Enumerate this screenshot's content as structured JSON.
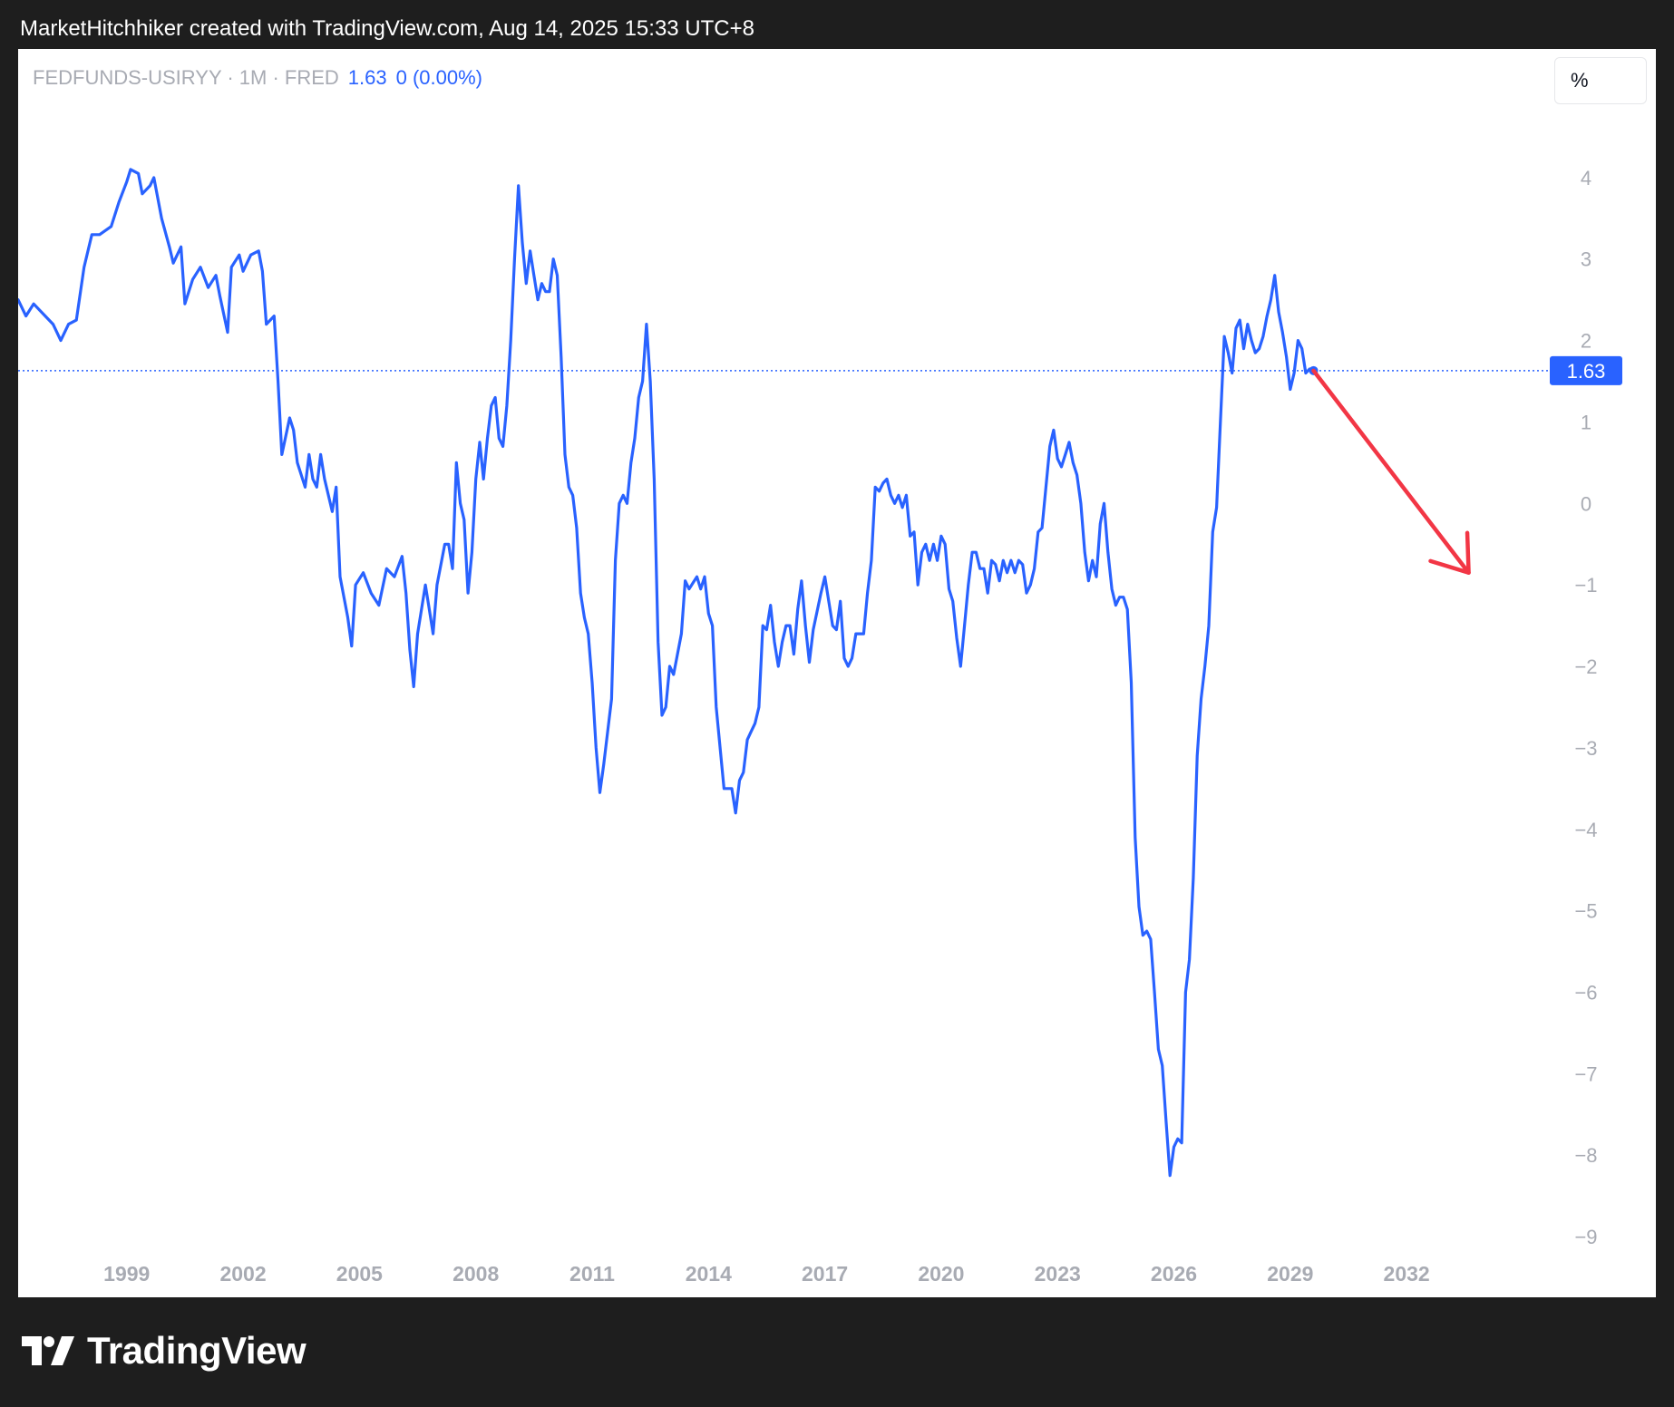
{
  "header": {
    "attribution": "MarketHitchhiker created with TradingView.com, Aug 14, 2025 15:33 UTC+8"
  },
  "legend": {
    "symbol": "FEDFUNDS-USIRYY · 1M · FRED",
    "last_value": "1.63",
    "change": "0 (0.00%)"
  },
  "scale_button": {
    "label": "%"
  },
  "brand": {
    "name": "TradingView"
  },
  "colors": {
    "series": "#2962ff",
    "arrow": "#f23645",
    "axis_text": "#a8abb3",
    "background": "#ffffff",
    "frame": "#1e1e1e"
  },
  "chart_data": {
    "type": "line",
    "title": "",
    "xlabel": "",
    "ylabel": "",
    "x_range": [
      1996.2,
      2035.2
    ],
    "ylim": [
      -9.5,
      4.9
    ],
    "y_ticks": [
      4,
      3,
      2,
      1,
      0,
      -1,
      -2,
      -3,
      -4,
      -5,
      -6,
      -7,
      -8,
      -9
    ],
    "y_tick_labels": [
      "4",
      "3",
      "2",
      "1",
      "0",
      "−1",
      "−2",
      "−3",
      "−4",
      "−5",
      "−6",
      "−7",
      "−8",
      "−9"
    ],
    "x_ticks": [
      1999,
      2002,
      2005,
      2008,
      2011,
      2014,
      2017,
      2020,
      2023,
      2026,
      2029,
      2032
    ],
    "x_tick_labels": [
      "1999",
      "2002",
      "2005",
      "2008",
      "2011",
      "2014",
      "2017",
      "2020",
      "2023",
      "2026",
      "2029",
      "2032"
    ],
    "grid": false,
    "last_value": 1.63,
    "last_value_label": "1.63",
    "series": [
      {
        "points": [
          [
            1996.2,
            2.5
          ],
          [
            1996.4,
            2.3
          ],
          [
            1996.6,
            2.45
          ],
          [
            1996.9,
            2.3
          ],
          [
            1997.1,
            2.2
          ],
          [
            1997.3,
            2.0
          ],
          [
            1997.5,
            2.2
          ],
          [
            1997.7,
            2.25
          ],
          [
            1997.9,
            2.9
          ],
          [
            1998.1,
            3.3
          ],
          [
            1998.3,
            3.3
          ],
          [
            1998.6,
            3.4
          ],
          [
            1998.8,
            3.7
          ],
          [
            1999.0,
            3.95
          ],
          [
            1999.1,
            4.1
          ],
          [
            1999.3,
            4.05
          ],
          [
            1999.4,
            3.8
          ],
          [
            1999.6,
            3.9
          ],
          [
            1999.7,
            4.0
          ],
          [
            1999.9,
            3.5
          ],
          [
            2000.1,
            3.15
          ],
          [
            2000.2,
            2.95
          ],
          [
            2000.4,
            3.15
          ],
          [
            2000.5,
            2.45
          ],
          [
            2000.7,
            2.75
          ],
          [
            2000.9,
            2.9
          ],
          [
            2001.1,
            2.65
          ],
          [
            2001.3,
            2.8
          ],
          [
            2001.4,
            2.55
          ],
          [
            2001.6,
            2.1
          ],
          [
            2001.7,
            2.9
          ],
          [
            2001.9,
            3.05
          ],
          [
            2002.0,
            2.85
          ],
          [
            2002.2,
            3.05
          ],
          [
            2002.4,
            3.1
          ],
          [
            2002.5,
            2.85
          ],
          [
            2002.6,
            2.2
          ],
          [
            2002.8,
            2.3
          ],
          [
            2002.9,
            1.5
          ],
          [
            2003.0,
            0.6
          ],
          [
            2003.2,
            1.05
          ],
          [
            2003.3,
            0.9
          ],
          [
            2003.4,
            0.5
          ],
          [
            2003.6,
            0.2
          ],
          [
            2003.7,
            0.6
          ],
          [
            2003.8,
            0.3
          ],
          [
            2003.9,
            0.2
          ],
          [
            2004.0,
            0.6
          ],
          [
            2004.1,
            0.3
          ],
          [
            2004.3,
            -0.1
          ],
          [
            2004.4,
            0.2
          ],
          [
            2004.5,
            -0.9
          ],
          [
            2004.7,
            -1.4
          ],
          [
            2004.8,
            -1.75
          ],
          [
            2004.9,
            -1.0
          ],
          [
            2005.1,
            -0.85
          ],
          [
            2005.3,
            -1.1
          ],
          [
            2005.5,
            -1.25
          ],
          [
            2005.7,
            -0.8
          ],
          [
            2005.9,
            -0.9
          ],
          [
            2006.1,
            -0.65
          ],
          [
            2006.2,
            -1.1
          ],
          [
            2006.3,
            -1.8
          ],
          [
            2006.4,
            -2.25
          ],
          [
            2006.5,
            -1.6
          ],
          [
            2006.7,
            -1.0
          ],
          [
            2006.8,
            -1.3
          ],
          [
            2006.9,
            -1.6
          ],
          [
            2007.0,
            -1.0
          ],
          [
            2007.2,
            -0.5
          ],
          [
            2007.3,
            -0.5
          ],
          [
            2007.4,
            -0.8
          ],
          [
            2007.5,
            0.5
          ],
          [
            2007.6,
            0.0
          ],
          [
            2007.7,
            -0.2
          ],
          [
            2007.8,
            -1.1
          ],
          [
            2007.9,
            -0.6
          ],
          [
            2008.0,
            0.3
          ],
          [
            2008.1,
            0.75
          ],
          [
            2008.2,
            0.3
          ],
          [
            2008.3,
            0.8
          ],
          [
            2008.4,
            1.2
          ],
          [
            2008.5,
            1.3
          ],
          [
            2008.6,
            0.8
          ],
          [
            2008.7,
            0.7
          ],
          [
            2008.8,
            1.2
          ],
          [
            2008.9,
            2.0
          ],
          [
            2009.0,
            3.0
          ],
          [
            2009.1,
            3.9
          ],
          [
            2009.2,
            3.2
          ],
          [
            2009.3,
            2.7
          ],
          [
            2009.4,
            3.1
          ],
          [
            2009.5,
            2.8
          ],
          [
            2009.6,
            2.5
          ],
          [
            2009.7,
            2.7
          ],
          [
            2009.8,
            2.6
          ],
          [
            2009.9,
            2.6
          ],
          [
            2010.0,
            3.0
          ],
          [
            2010.1,
            2.8
          ],
          [
            2010.2,
            1.8
          ],
          [
            2010.3,
            0.6
          ],
          [
            2010.4,
            0.2
          ],
          [
            2010.5,
            0.1
          ],
          [
            2010.6,
            -0.3
          ],
          [
            2010.7,
            -1.1
          ],
          [
            2010.8,
            -1.4
          ],
          [
            2010.9,
            -1.6
          ],
          [
            2011.0,
            -2.2
          ],
          [
            2011.1,
            -3.0
          ],
          [
            2011.2,
            -3.55
          ],
          [
            2011.3,
            -3.2
          ],
          [
            2011.4,
            -2.8
          ],
          [
            2011.5,
            -2.4
          ],
          [
            2011.6,
            -0.7
          ],
          [
            2011.7,
            0.0
          ],
          [
            2011.8,
            0.1
          ],
          [
            2011.9,
            0.0
          ],
          [
            2012.0,
            0.5
          ],
          [
            2012.1,
            0.8
          ],
          [
            2012.2,
            1.3
          ],
          [
            2012.3,
            1.5
          ],
          [
            2012.4,
            2.2
          ],
          [
            2012.5,
            1.5
          ],
          [
            2012.6,
            0.3
          ],
          [
            2012.7,
            -1.7
          ],
          [
            2012.8,
            -2.6
          ],
          [
            2012.9,
            -2.5
          ],
          [
            2013.0,
            -2.0
          ],
          [
            2013.1,
            -2.1
          ],
          [
            2013.3,
            -1.6
          ],
          [
            2013.4,
            -0.95
          ],
          [
            2013.5,
            -1.05
          ],
          [
            2013.7,
            -0.9
          ],
          [
            2013.8,
            -1.05
          ],
          [
            2013.9,
            -0.9
          ],
          [
            2014.0,
            -1.35
          ],
          [
            2014.1,
            -1.5
          ],
          [
            2014.2,
            -2.5
          ],
          [
            2014.4,
            -3.5
          ],
          [
            2014.6,
            -3.5
          ],
          [
            2014.7,
            -3.8
          ],
          [
            2014.8,
            -3.4
          ],
          [
            2014.9,
            -3.3
          ],
          [
            2015.0,
            -2.9
          ],
          [
            2015.1,
            -2.8
          ],
          [
            2015.2,
            -2.7
          ],
          [
            2015.3,
            -2.5
          ],
          [
            2015.4,
            -1.5
          ],
          [
            2015.5,
            -1.55
          ],
          [
            2015.6,
            -1.25
          ],
          [
            2015.7,
            -1.7
          ],
          [
            2015.8,
            -2.0
          ],
          [
            2015.9,
            -1.7
          ],
          [
            2016.0,
            -1.5
          ],
          [
            2016.1,
            -1.5
          ],
          [
            2016.2,
            -1.85
          ],
          [
            2016.3,
            -1.3
          ],
          [
            2016.4,
            -0.95
          ],
          [
            2016.5,
            -1.5
          ],
          [
            2016.6,
            -1.95
          ],
          [
            2016.7,
            -1.55
          ],
          [
            2016.9,
            -1.1
          ],
          [
            2017.0,
            -0.9
          ],
          [
            2017.1,
            -1.2
          ],
          [
            2017.2,
            -1.5
          ],
          [
            2017.3,
            -1.55
          ],
          [
            2017.4,
            -1.2
          ],
          [
            2017.5,
            -1.9
          ],
          [
            2017.6,
            -2.0
          ],
          [
            2017.7,
            -1.9
          ],
          [
            2017.8,
            -1.6
          ],
          [
            2017.9,
            -1.6
          ],
          [
            2018.0,
            -1.6
          ],
          [
            2018.1,
            -1.1
          ],
          [
            2018.2,
            -0.7
          ],
          [
            2018.3,
            0.2
          ],
          [
            2018.4,
            0.15
          ],
          [
            2018.5,
            0.25
          ],
          [
            2018.6,
            0.3
          ],
          [
            2018.7,
            0.1
          ],
          [
            2018.8,
            0.0
          ],
          [
            2018.9,
            0.1
          ],
          [
            2019.0,
            -0.05
          ],
          [
            2019.1,
            0.1
          ],
          [
            2019.2,
            -0.4
          ],
          [
            2019.3,
            -0.35
          ],
          [
            2019.4,
            -1.0
          ],
          [
            2019.5,
            -0.6
          ],
          [
            2019.6,
            -0.5
          ],
          [
            2019.7,
            -0.7
          ],
          [
            2019.8,
            -0.5
          ],
          [
            2019.9,
            -0.7
          ],
          [
            2020.0,
            -0.4
          ],
          [
            2020.1,
            -0.5
          ],
          [
            2020.2,
            -1.05
          ],
          [
            2020.3,
            -1.2
          ],
          [
            2020.4,
            -1.65
          ],
          [
            2020.5,
            -2.0
          ],
          [
            2020.6,
            -1.5
          ],
          [
            2020.7,
            -1.0
          ],
          [
            2020.8,
            -0.6
          ],
          [
            2020.9,
            -0.6
          ],
          [
            2021.0,
            -0.8
          ],
          [
            2021.1,
            -0.8
          ],
          [
            2021.2,
            -1.1
          ],
          [
            2021.3,
            -0.7
          ],
          [
            2021.4,
            -0.75
          ],
          [
            2021.5,
            -0.95
          ],
          [
            2021.6,
            -0.7
          ],
          [
            2021.7,
            -0.85
          ],
          [
            2021.8,
            -0.7
          ],
          [
            2021.9,
            -0.85
          ],
          [
            2022.0,
            -0.7
          ],
          [
            2022.1,
            -0.75
          ],
          [
            2022.2,
            -1.1
          ],
          [
            2022.3,
            -1.0
          ],
          [
            2022.4,
            -0.8
          ],
          [
            2022.5,
            -0.35
          ],
          [
            2022.6,
            -0.3
          ],
          [
            2022.7,
            0.2
          ],
          [
            2022.8,
            0.7
          ],
          [
            2022.9,
            0.9
          ],
          [
            2023.0,
            0.55
          ],
          [
            2023.1,
            0.45
          ],
          [
            2023.2,
            0.6
          ],
          [
            2023.3,
            0.75
          ],
          [
            2023.4,
            0.5
          ],
          [
            2023.5,
            0.35
          ],
          [
            2023.6,
            0.0
          ],
          [
            2023.7,
            -0.6
          ],
          [
            2023.8,
            -0.95
          ],
          [
            2023.9,
            -0.7
          ],
          [
            2024.0,
            -0.9
          ],
          [
            2024.1,
            -0.25
          ],
          [
            2024.2,
            0.0
          ],
          [
            2024.3,
            -0.6
          ],
          [
            2024.4,
            -1.05
          ],
          [
            2024.5,
            -1.25
          ],
          [
            2024.6,
            -1.15
          ],
          [
            2024.7,
            -1.15
          ],
          [
            2024.8,
            -1.3
          ],
          [
            2024.9,
            -2.2
          ],
          [
            2025.0,
            -4.1
          ],
          [
            2025.1,
            -4.95
          ],
          [
            2025.2,
            -5.3
          ],
          [
            2025.3,
            -5.25
          ],
          [
            2025.4,
            -5.35
          ],
          [
            2025.5,
            -6.0
          ],
          [
            2025.6,
            -6.7
          ],
          [
            2025.7,
            -6.9
          ],
          [
            2025.8,
            -7.6
          ],
          [
            2025.9,
            -8.25
          ],
          [
            2026.0,
            -7.9
          ],
          [
            2026.1,
            -7.8
          ],
          [
            2026.2,
            -7.85
          ],
          [
            2026.3,
            -6.0
          ],
          [
            2026.4,
            -5.6
          ],
          [
            2026.5,
            -4.6
          ],
          [
            2026.6,
            -3.1
          ],
          [
            2026.7,
            -2.4
          ],
          [
            2026.8,
            -2.0
          ],
          [
            2026.9,
            -1.5
          ],
          [
            2027.0,
            -0.35
          ],
          [
            2027.1,
            -0.05
          ],
          [
            2027.2,
            1.0
          ],
          [
            2027.3,
            2.05
          ],
          [
            2027.4,
            1.85
          ],
          [
            2027.5,
            1.6
          ],
          [
            2027.6,
            2.15
          ],
          [
            2027.7,
            2.25
          ],
          [
            2027.8,
            1.9
          ],
          [
            2027.9,
            2.2
          ],
          [
            2028.0,
            2.0
          ],
          [
            2028.1,
            1.85
          ],
          [
            2028.2,
            1.9
          ],
          [
            2028.3,
            2.05
          ],
          [
            2028.4,
            2.3
          ],
          [
            2028.5,
            2.5
          ],
          [
            2028.6,
            2.8
          ],
          [
            2028.7,
            2.35
          ],
          [
            2028.8,
            2.1
          ],
          [
            2028.9,
            1.8
          ],
          [
            2029.0,
            1.4
          ],
          [
            2029.1,
            1.6
          ],
          [
            2029.2,
            2.0
          ],
          [
            2029.3,
            1.9
          ],
          [
            2029.4,
            1.6
          ],
          [
            2029.5,
            1.65
          ],
          [
            2029.6,
            1.63
          ]
        ]
      }
    ],
    "annotations": [
      {
        "type": "arrow",
        "from": [
          2029.6,
          1.63
        ],
        "to": [
          2033.6,
          -0.85
        ]
      }
    ]
  }
}
